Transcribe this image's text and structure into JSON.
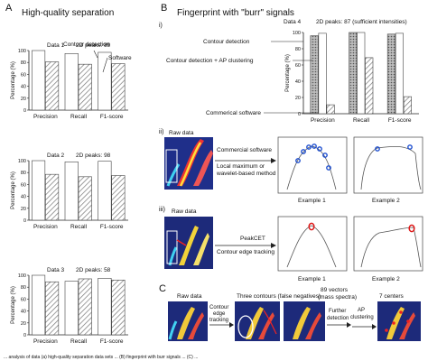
{
  "figure": {
    "panelA": {
      "letter": "A",
      "title": "High-quality separation",
      "ylabel": "Percentage (%)",
      "xlabels": [
        "Precision",
        "Recall",
        "F1-score"
      ],
      "charts": [
        {
          "data": "Data 1",
          "peaks": "2D peaks: 89",
          "legend_contour": "Contour detection",
          "legend_software": "Software"
        },
        {
          "data": "Data 2",
          "peaks": "2D peaks: 98"
        },
        {
          "data": "Data 3",
          "peaks": "2D peaks: 58"
        }
      ]
    },
    "panelB": {
      "letter": "B",
      "title": "Fingerprint with \"burr\" signals",
      "sub_i": "i)",
      "sub_ii": "ii)",
      "sub_iii": "iii)",
      "data": "Data 4",
      "peaks": "2D peaks: 87 (sufficient intensities)",
      "legend": [
        "Contour detection",
        "Contour detection + AP clustering",
        "Commerical software"
      ],
      "ylabel": "Percentage (%)",
      "xlabels": [
        "Precision",
        "Recall",
        "F1-score"
      ],
      "ii_raw": "Raw data",
      "ii_method1": "Commercial software",
      "ii_method2": "Local maximum or",
      "ii_method3": "wavelet-based method",
      "ii_ex1": "Example 1",
      "ii_ex2": "Example 2",
      "iii_raw": "Raw data",
      "iii_method1": "PeakCET",
      "iii_method2": "Contour edge tracking",
      "iii_ex1": "Example 1",
      "iii_ex2": "Example 2"
    },
    "panelC": {
      "letter": "C",
      "raw": "Raw data",
      "three_contours": "Three contours (false negatives)",
      "vectors1": "89 vectors",
      "vectors2": "(mass spectra)",
      "centers": "7 centers",
      "step1a": "Contour",
      "step1b": "edge",
      "step1c": "tracking",
      "step2a": "Further",
      "step2b": "detection",
      "step3a": "AP",
      "step3b": "clustering"
    },
    "caption": "... analysis of data (a) high-quality separation data sets ... (B) fingerprint with burr signals ... (C) ..."
  },
  "chart_data": [
    {
      "type": "bar",
      "title": "Data 1",
      "categories": [
        "Precision",
        "Recall",
        "F1-score"
      ],
      "ylim": [
        0,
        100
      ],
      "series": [
        {
          "name": "Contour detection",
          "values": [
            100,
            95,
            97
          ]
        },
        {
          "name": "Software",
          "values": [
            81,
            77,
            78
          ]
        }
      ]
    },
    {
      "type": "bar",
      "title": "Data 2",
      "categories": [
        "Precision",
        "Recall",
        "F1-score"
      ],
      "ylim": [
        0,
        100
      ],
      "series": [
        {
          "values": [
            100,
            98,
            99
          ]
        },
        {
          "values": [
            77,
            73,
            75
          ]
        }
      ]
    },
    {
      "type": "bar",
      "title": "Data 3",
      "categories": [
        "Precision",
        "Recall",
        "F1-score"
      ],
      "ylim": [
        0,
        100
      ],
      "series": [
        {
          "values": [
            100,
            90,
            95
          ]
        },
        {
          "values": [
            89,
            94,
            92
          ]
        }
      ]
    },
    {
      "type": "bar",
      "title": "Data 4",
      "categories": [
        "Precision",
        "Recall",
        "F1-score"
      ],
      "ylim": [
        0,
        100
      ],
      "series": [
        {
          "name": "Contour detection",
          "values": [
            96,
            100,
            98
          ]
        },
        {
          "name": "Contour detection + AP clustering",
          "values": [
            99,
            100,
            99
          ]
        },
        {
          "name": "Commerical software",
          "values": [
            11,
            69,
            21
          ]
        }
      ]
    }
  ]
}
